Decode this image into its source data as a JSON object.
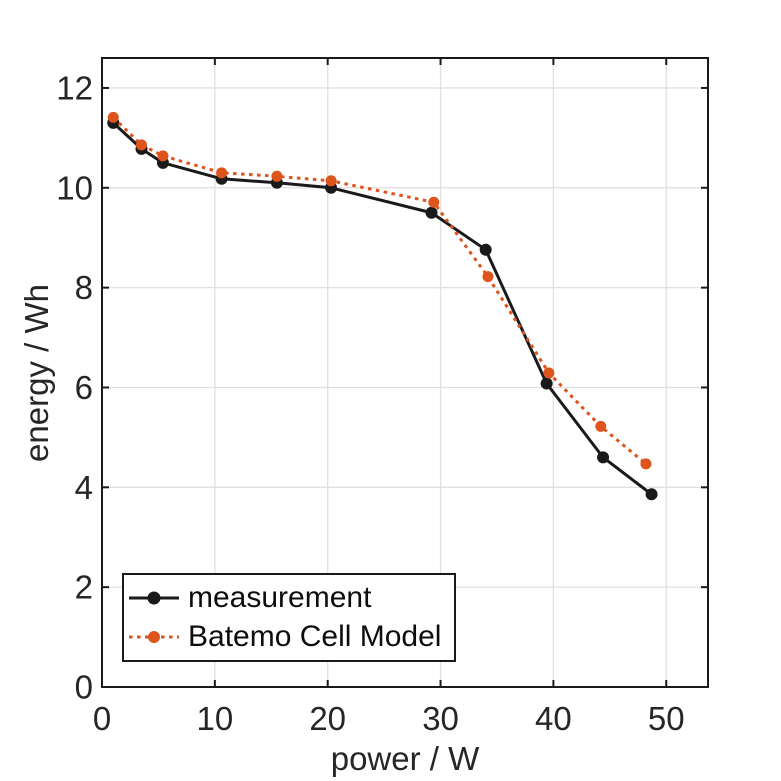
{
  "figure": {
    "background_color": "#ffffff",
    "title": ""
  },
  "colors": {
    "axis": "#1a1a1a",
    "grid": "#e0e0e0",
    "tick_label": "#262626",
    "axis_title": "#262626",
    "legend_border": "#1a1a1a",
    "legend_background": "#ffffff"
  },
  "chart_data": {
    "type": "line",
    "title": "",
    "xlabel": "power / W",
    "ylabel": "energy / Wh",
    "xlim": [
      0,
      53.7
    ],
    "ylim": [
      0,
      12.6
    ],
    "xticks": [
      0,
      10,
      20,
      30,
      40,
      50
    ],
    "yticks": [
      0,
      2,
      4,
      6,
      8,
      10,
      12
    ],
    "grid": true,
    "legend_position": "inside-bottom-left",
    "series": [
      {
        "name": "measurement",
        "color": "#1a1a1a",
        "line_style": "solid",
        "line_width": 3,
        "marker": "circle",
        "marker_radius": 6,
        "x": [
          1.0,
          3.5,
          5.4,
          10.6,
          15.5,
          20.3,
          29.2,
          34.0,
          39.4,
          44.4,
          48.7
        ],
        "y": [
          11.3,
          10.78,
          10.5,
          10.18,
          10.1,
          10.0,
          9.5,
          8.76,
          6.08,
          4.6,
          3.86
        ]
      },
      {
        "name": "Batemo Cell Model",
        "color": "#dd541c",
        "line_style": "dotted",
        "line_width": 3,
        "marker": "circle",
        "marker_radius": 5.5,
        "x": [
          1.0,
          3.5,
          5.4,
          10.6,
          15.5,
          20.3,
          29.4,
          34.2,
          39.6,
          44.2,
          48.2
        ],
        "y": [
          11.41,
          10.86,
          10.64,
          10.3,
          10.23,
          10.14,
          9.71,
          8.22,
          6.29,
          5.22,
          4.47
        ]
      }
    ]
  },
  "legend": {
    "items": [
      {
        "label": "measurement"
      },
      {
        "label": "Batemo Cell Model"
      }
    ]
  }
}
